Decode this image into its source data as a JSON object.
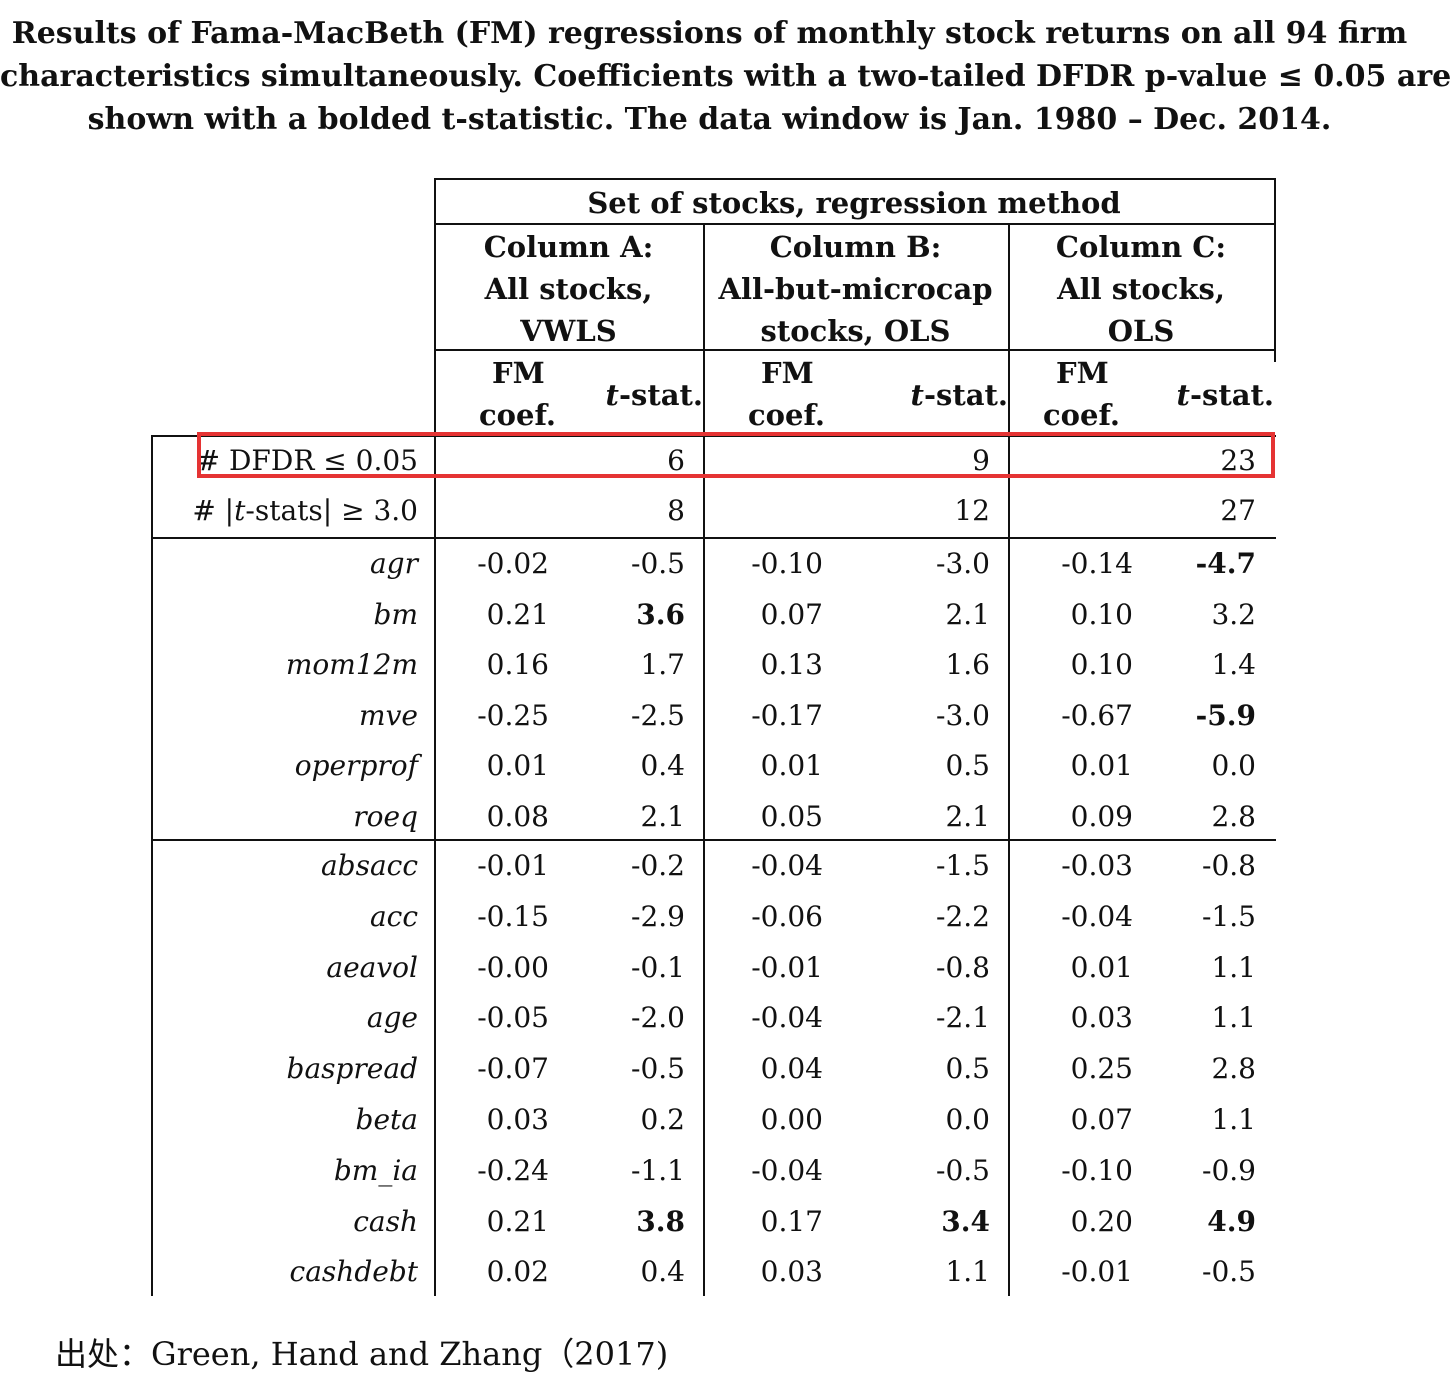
{
  "caption": {
    "line1": "Results of Fama-MacBeth (FM) regressions of monthly stock returns on all 94 firm",
    "line2": "characteristics simultaneously.  Coefficients with a two-tailed DFDR p-value ≤ 0.05 are",
    "line3": "shown with a bolded t-statistic.  The data window is Jan. 1980 – Dec. 2014."
  },
  "table": {
    "group_header": "Set of stocks, regression method",
    "columns": [
      {
        "l1": "Column A:",
        "l2": "All stocks,",
        "l3": "VWLS"
      },
      {
        "l1": "Column B:",
        "l2": "All-but-microcap",
        "l3": "stocks, OLS"
      },
      {
        "l1": "Column C:",
        "l2": "All stocks,",
        "l3": "OLS"
      }
    ],
    "sub": {
      "fm_l1": "FM",
      "fm_l2": "coef.",
      "t_pre": "t",
      "t_post": "-stat."
    },
    "summary": [
      {
        "label_pre": "# DFDR ≤ 0.05",
        "label_it": "",
        "label_post": "",
        "a": "6",
        "b": "9",
        "c": "23"
      },
      {
        "label_pre": "# |",
        "label_it": "t",
        "label_post": "-stats| ≥ 3.0",
        "a": "8",
        "b": "12",
        "c": "27"
      }
    ],
    "group1": [
      {
        "name": "agr",
        "a_coef": "-0.02",
        "a_t": "-0.5",
        "b_coef": "-0.10",
        "b_t": "-3.0",
        "c_coef": "-0.14",
        "c_t": "-4.7"
      },
      {
        "name": "bm",
        "a_coef": "0.21",
        "a_t": "3.6",
        "b_coef": "0.07",
        "b_t": "2.1",
        "c_coef": "0.10",
        "c_t": "3.2"
      },
      {
        "name": "mom12m",
        "a_coef": "0.16",
        "a_t": "1.7",
        "b_coef": "0.13",
        "b_t": "1.6",
        "c_coef": "0.10",
        "c_t": "1.4"
      },
      {
        "name": "mve",
        "a_coef": "-0.25",
        "a_t": "-2.5",
        "b_coef": "-0.17",
        "b_t": "-3.0",
        "c_coef": "-0.67",
        "c_t": "-5.9"
      },
      {
        "name": "operprof",
        "a_coef": "0.01",
        "a_t": "0.4",
        "b_coef": "0.01",
        "b_t": "0.5",
        "c_coef": "0.01",
        "c_t": "0.0"
      },
      {
        "name": "roeq",
        "a_coef": "0.08",
        "a_t": "2.1",
        "b_coef": "0.05",
        "b_t": "2.1",
        "c_coef": "0.09",
        "c_t": "2.8"
      }
    ],
    "group2": [
      {
        "name": "absacc",
        "a_coef": "-0.01",
        "a_t": "-0.2",
        "b_coef": "-0.04",
        "b_t": "-1.5",
        "c_coef": "-0.03",
        "c_t": "-0.8"
      },
      {
        "name": "acc",
        "a_coef": "-0.15",
        "a_t": "-2.9",
        "b_coef": "-0.06",
        "b_t": "-2.2",
        "c_coef": "-0.04",
        "c_t": "-1.5"
      },
      {
        "name": "aeavol",
        "a_coef": "-0.00",
        "a_t": "-0.1",
        "b_coef": "-0.01",
        "b_t": "-0.8",
        "c_coef": "0.01",
        "c_t": "1.1"
      },
      {
        "name": "age",
        "a_coef": "-0.05",
        "a_t": "-2.0",
        "b_coef": "-0.04",
        "b_t": "-2.1",
        "c_coef": "0.03",
        "c_t": "1.1"
      },
      {
        "name": "baspread",
        "a_coef": "-0.07",
        "a_t": "-0.5",
        "b_coef": "0.04",
        "b_t": "0.5",
        "c_coef": "0.25",
        "c_t": "2.8"
      },
      {
        "name": "beta",
        "a_coef": "0.03",
        "a_t": "0.2",
        "b_coef": "0.00",
        "b_t": "0.0",
        "c_coef": "0.07",
        "c_t": "1.1"
      },
      {
        "name": "bm_ia",
        "a_coef": "-0.24",
        "a_t": "-1.1",
        "b_coef": "-0.04",
        "b_t": "-0.5",
        "c_coef": "-0.10",
        "c_t": "-0.9"
      },
      {
        "name": "cash",
        "a_coef": "0.21",
        "a_t": "3.8",
        "b_coef": "0.17",
        "b_t": "3.4",
        "c_coef": "0.20",
        "c_t": "4.9"
      },
      {
        "name": "cashdebt",
        "a_coef": "0.02",
        "a_t": "0.4",
        "b_coef": "0.03",
        "b_t": "1.1",
        "c_coef": "-0.01",
        "c_t": "-0.5"
      }
    ],
    "bold_cells": [
      [
        "agr",
        "c_t"
      ],
      [
        "bm",
        "a_t"
      ],
      [
        "mve",
        "c_t"
      ],
      [
        "cash",
        "a_t"
      ],
      [
        "cash",
        "b_t"
      ],
      [
        "cash",
        "c_t"
      ]
    ]
  },
  "source": "出处：Green, Hand and Zhang（2017)",
  "highlight_color": "#e53333"
}
